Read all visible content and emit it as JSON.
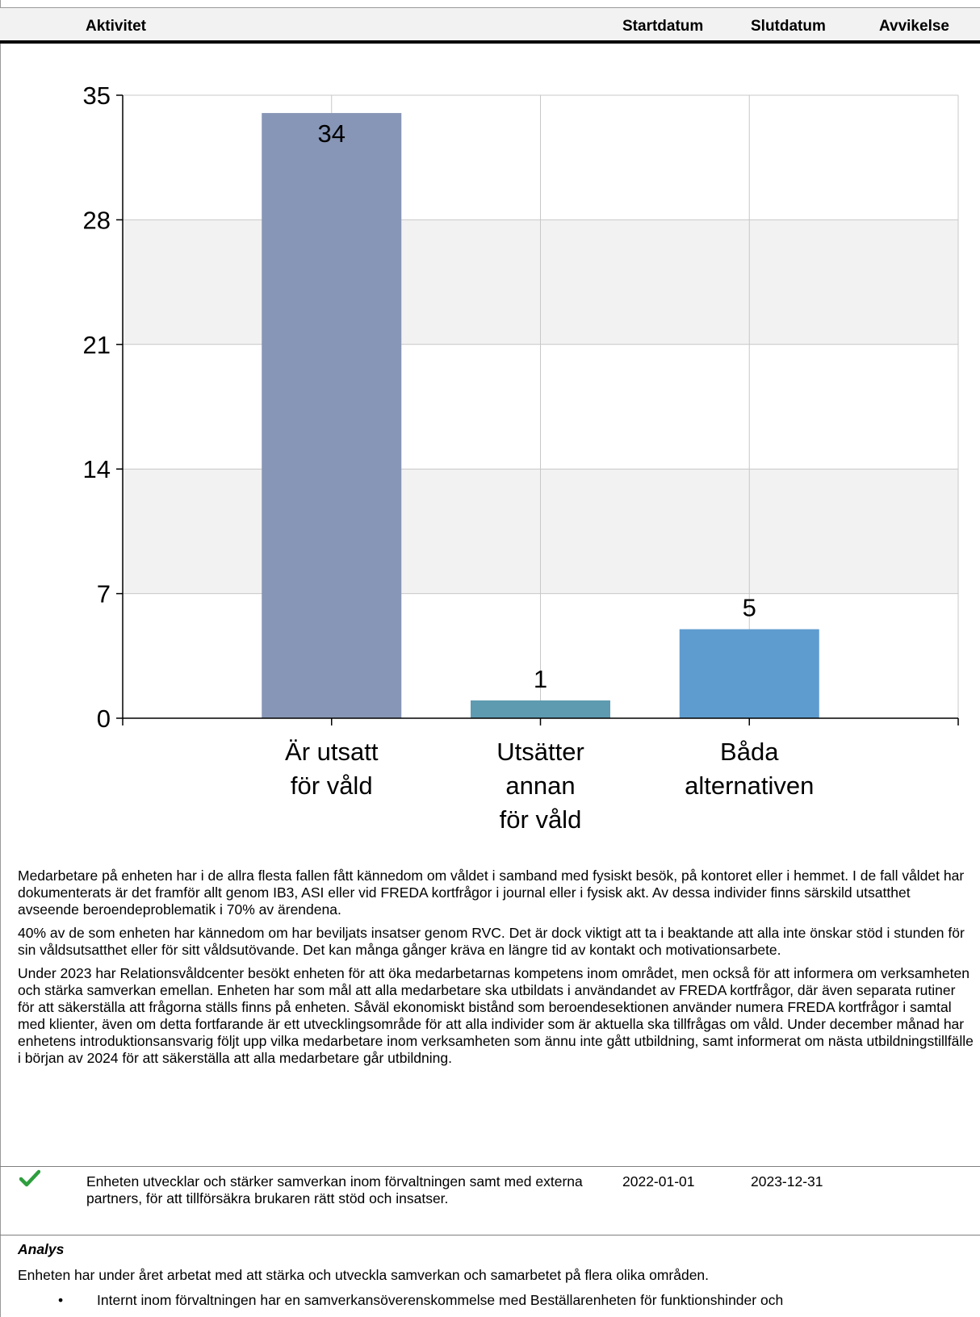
{
  "header": {
    "activity": "Aktivitet",
    "start": "Startdatum",
    "end": "Slutdatum",
    "deviation": "Avvikelse"
  },
  "chart_data": {
    "type": "bar",
    "categories": [
      [
        "Är utsatt",
        "för våld"
      ],
      [
        "Utsätter",
        "annan",
        "för våld"
      ],
      [
        "Båda",
        "alternativen"
      ]
    ],
    "values": [
      34,
      1,
      5
    ],
    "data_labels": [
      "34",
      "1",
      "5"
    ],
    "colors": [
      "#8796b6",
      "#5e9bb0",
      "#5e9ccf"
    ],
    "ylim": [
      0,
      35
    ],
    "yticks": [
      0,
      7,
      14,
      21,
      28,
      35
    ],
    "grid": true,
    "title": "",
    "xlabel": "",
    "ylabel": ""
  },
  "paragraphs": [
    "Medarbetare på enheten har i de allra flesta fallen fått kännedom om våldet i samband med fysiskt besök, på kontoret eller i hemmet. I de fall våldet har dokumenterats är det framför allt genom IB3, ASI eller vid FREDA kortfrågor i journal eller i fysisk akt. Av dessa individer finns särskild utsatthet avseende beroendeproblematik i 70% av ärendena.",
    "40% av de som enheten har kännedom om har beviljats insatser genom RVC. Det är dock viktigt att ta i beaktande att alla inte önskar stöd i stunden för sin våldsutsatthet eller för sitt våldsutövande. Det kan många gånger kräva en längre tid av kontakt och motivationsarbete.",
    "Under 2023 har Relationsvåldcenter besökt enheten för att öka medarbetarnas kompetens inom området, men också för att informera om verksamheten och stärka samverkan emellan. Enheten har som mål att alla medarbetare ska utbildats i användandet av FREDA kortfrågor, där även separata rutiner för att säkerställa att frågorna ställs finns på enheten. Såväl ekonomiskt bistånd som beroendesektionen använder numera FREDA kortfrågor i samtal med klienter, även om detta fortfarande är ett utvecklingsområde för att alla individer som är aktuella ska tillfrågas om våld. Under december månad har enhetens introduktionsansvarig följt upp vilka medarbetare inom verksamheten som ännu inte gått utbildning, samt informerat om nästa utbildningstillfälle i början av 2024 för att säkerställa att alla medarbetare går utbildning."
  ],
  "activity": {
    "status_icon": "check-icon",
    "status_color": "#2e9e3e",
    "text": "Enheten utvecklar och stärker samverkan inom förvaltningen samt med externa partners, för att tillförsäkra brukaren rätt stöd och insatser.",
    "start": "2022-01-01",
    "end": "2023-12-31"
  },
  "analysis": {
    "label": "Analys",
    "text": "Enheten har under året arbetat med att stärka och utveckla samverkan och samarbetet på flera olika områden.",
    "bullet": "Internt inom förvaltningen har en samverkansöverenskommelse med Beställarenheten för funktionshinder och"
  }
}
